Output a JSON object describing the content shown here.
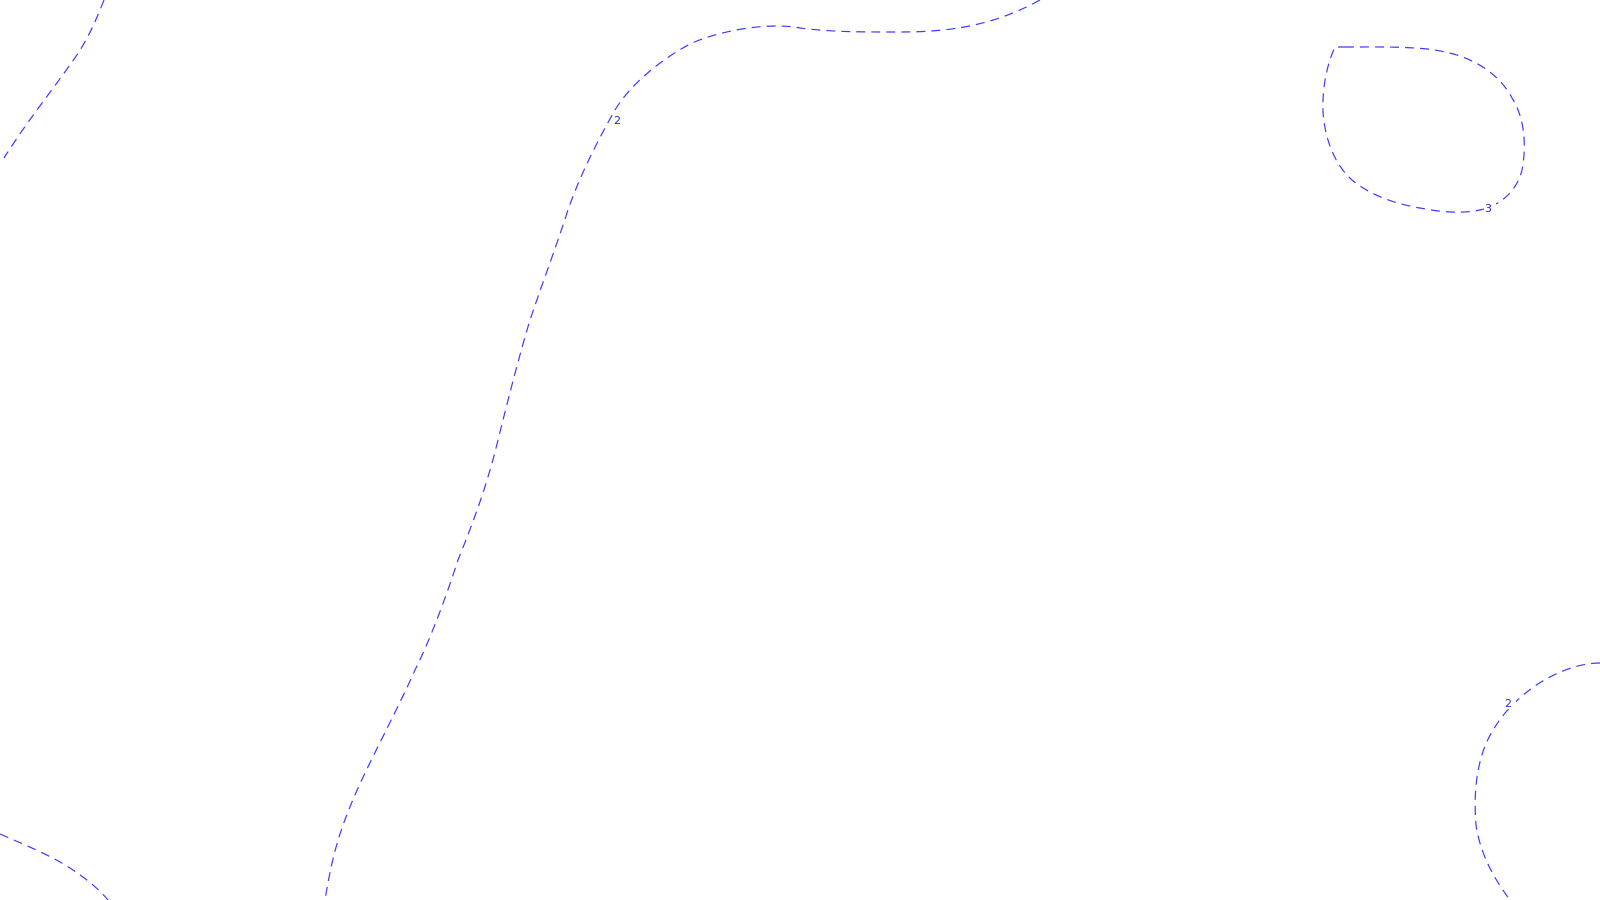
{
  "map": {
    "background_color": "#ffffff",
    "contour_color": "#3b3bff",
    "contours": [
      {
        "id": "contour-top-left",
        "level": "",
        "labeled": false
      },
      {
        "id": "contour-main-ridge",
        "level": "2",
        "labeled": true
      },
      {
        "id": "contour-top-right-loop",
        "level": "3",
        "labeled": true
      },
      {
        "id": "contour-bottom-right",
        "level": "2",
        "labeled": true
      },
      {
        "id": "contour-bottom-left",
        "level": "",
        "labeled": false
      }
    ]
  }
}
